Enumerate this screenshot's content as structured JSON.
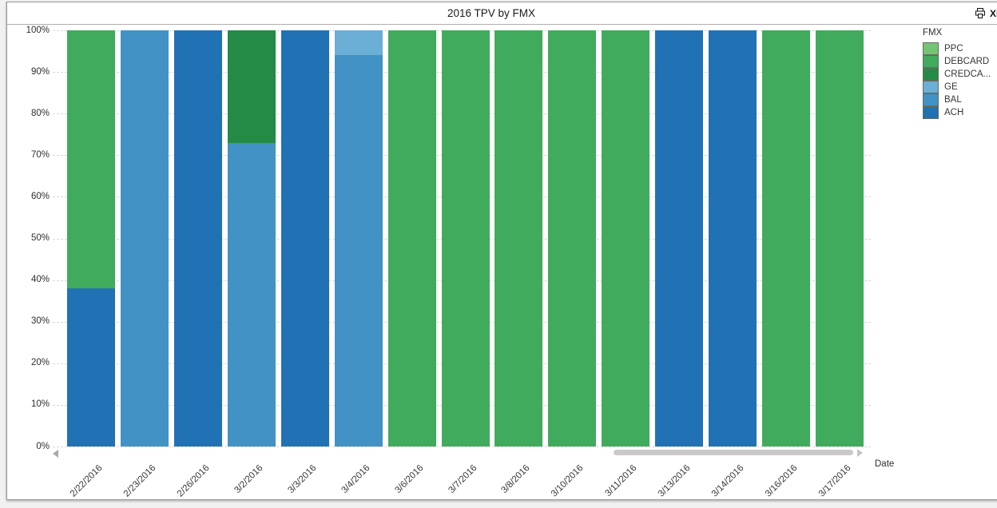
{
  "window": {
    "title": "2016 TPV by FMX",
    "toolbar": {
      "print_icon": "print-icon",
      "excel_label": "XL"
    }
  },
  "chart_data": {
    "type": "bar",
    "stacked": true,
    "mode": "percent",
    "title": "2016 TPV by FMX",
    "xlabel": "Date",
    "ylabel": "",
    "ylim": [
      0,
      100
    ],
    "grid": "dashed-horizontal",
    "y_axis": {
      "tick_labels": [
        "0%",
        "10%",
        "20%",
        "30%",
        "40%",
        "50%",
        "60%",
        "70%",
        "80%",
        "90%",
        "100%"
      ]
    },
    "categories": [
      "2/22/2016",
      "2/23/2016",
      "2/26/2016",
      "3/2/2016",
      "3/3/2016",
      "3/4/2016",
      "3/6/2016",
      "3/7/2016",
      "3/8/2016",
      "3/10/2016",
      "3/11/2016",
      "3/13/2016",
      "3/14/2016",
      "3/16/2016",
      "3/17/2016"
    ],
    "stack_order": "bottom_to_top",
    "series": [
      {
        "name": "ACH",
        "color": "#2171b5",
        "values": [
          38,
          0,
          100,
          0,
          100,
          0,
          0,
          0,
          0,
          0,
          0,
          100,
          100,
          0,
          0
        ]
      },
      {
        "name": "BAL",
        "color": "#4292c6",
        "values": [
          0,
          100,
          0,
          73,
          0,
          94,
          0,
          0,
          0,
          0,
          0,
          0,
          0,
          0,
          0
        ]
      },
      {
        "name": "GE",
        "color": "#6baed6",
        "values": [
          0,
          0,
          0,
          0,
          0,
          6,
          0,
          0,
          0,
          0,
          0,
          0,
          0,
          0,
          0
        ]
      },
      {
        "name": "CREDCARD",
        "color": "#238b45",
        "values": [
          0,
          0,
          0,
          27,
          0,
          0,
          0,
          0,
          0,
          0,
          0,
          0,
          0,
          0,
          0
        ]
      },
      {
        "name": "DEBCARD",
        "color": "#41ab5d",
        "values": [
          62,
          0,
          0,
          0,
          0,
          0,
          100,
          100,
          100,
          100,
          100,
          0,
          0,
          100,
          100
        ]
      },
      {
        "name": "PPC",
        "color": "#74c476",
        "values": [
          0,
          0,
          0,
          0,
          0,
          0,
          0,
          0,
          0,
          0,
          0,
          0,
          0,
          0,
          0
        ]
      }
    ],
    "legend": {
      "title": "FMX",
      "position": "right",
      "items": [
        {
          "label": "PPC",
          "color": "#74c476"
        },
        {
          "label": "DEBCARD",
          "color": "#41ab5d"
        },
        {
          "label": "CREDCA...",
          "color": "#238b45"
        },
        {
          "label": "GE",
          "color": "#6baed6"
        },
        {
          "label": "BAL",
          "color": "#4292c6"
        },
        {
          "label": "ACH",
          "color": "#2171b5"
        }
      ]
    }
  }
}
